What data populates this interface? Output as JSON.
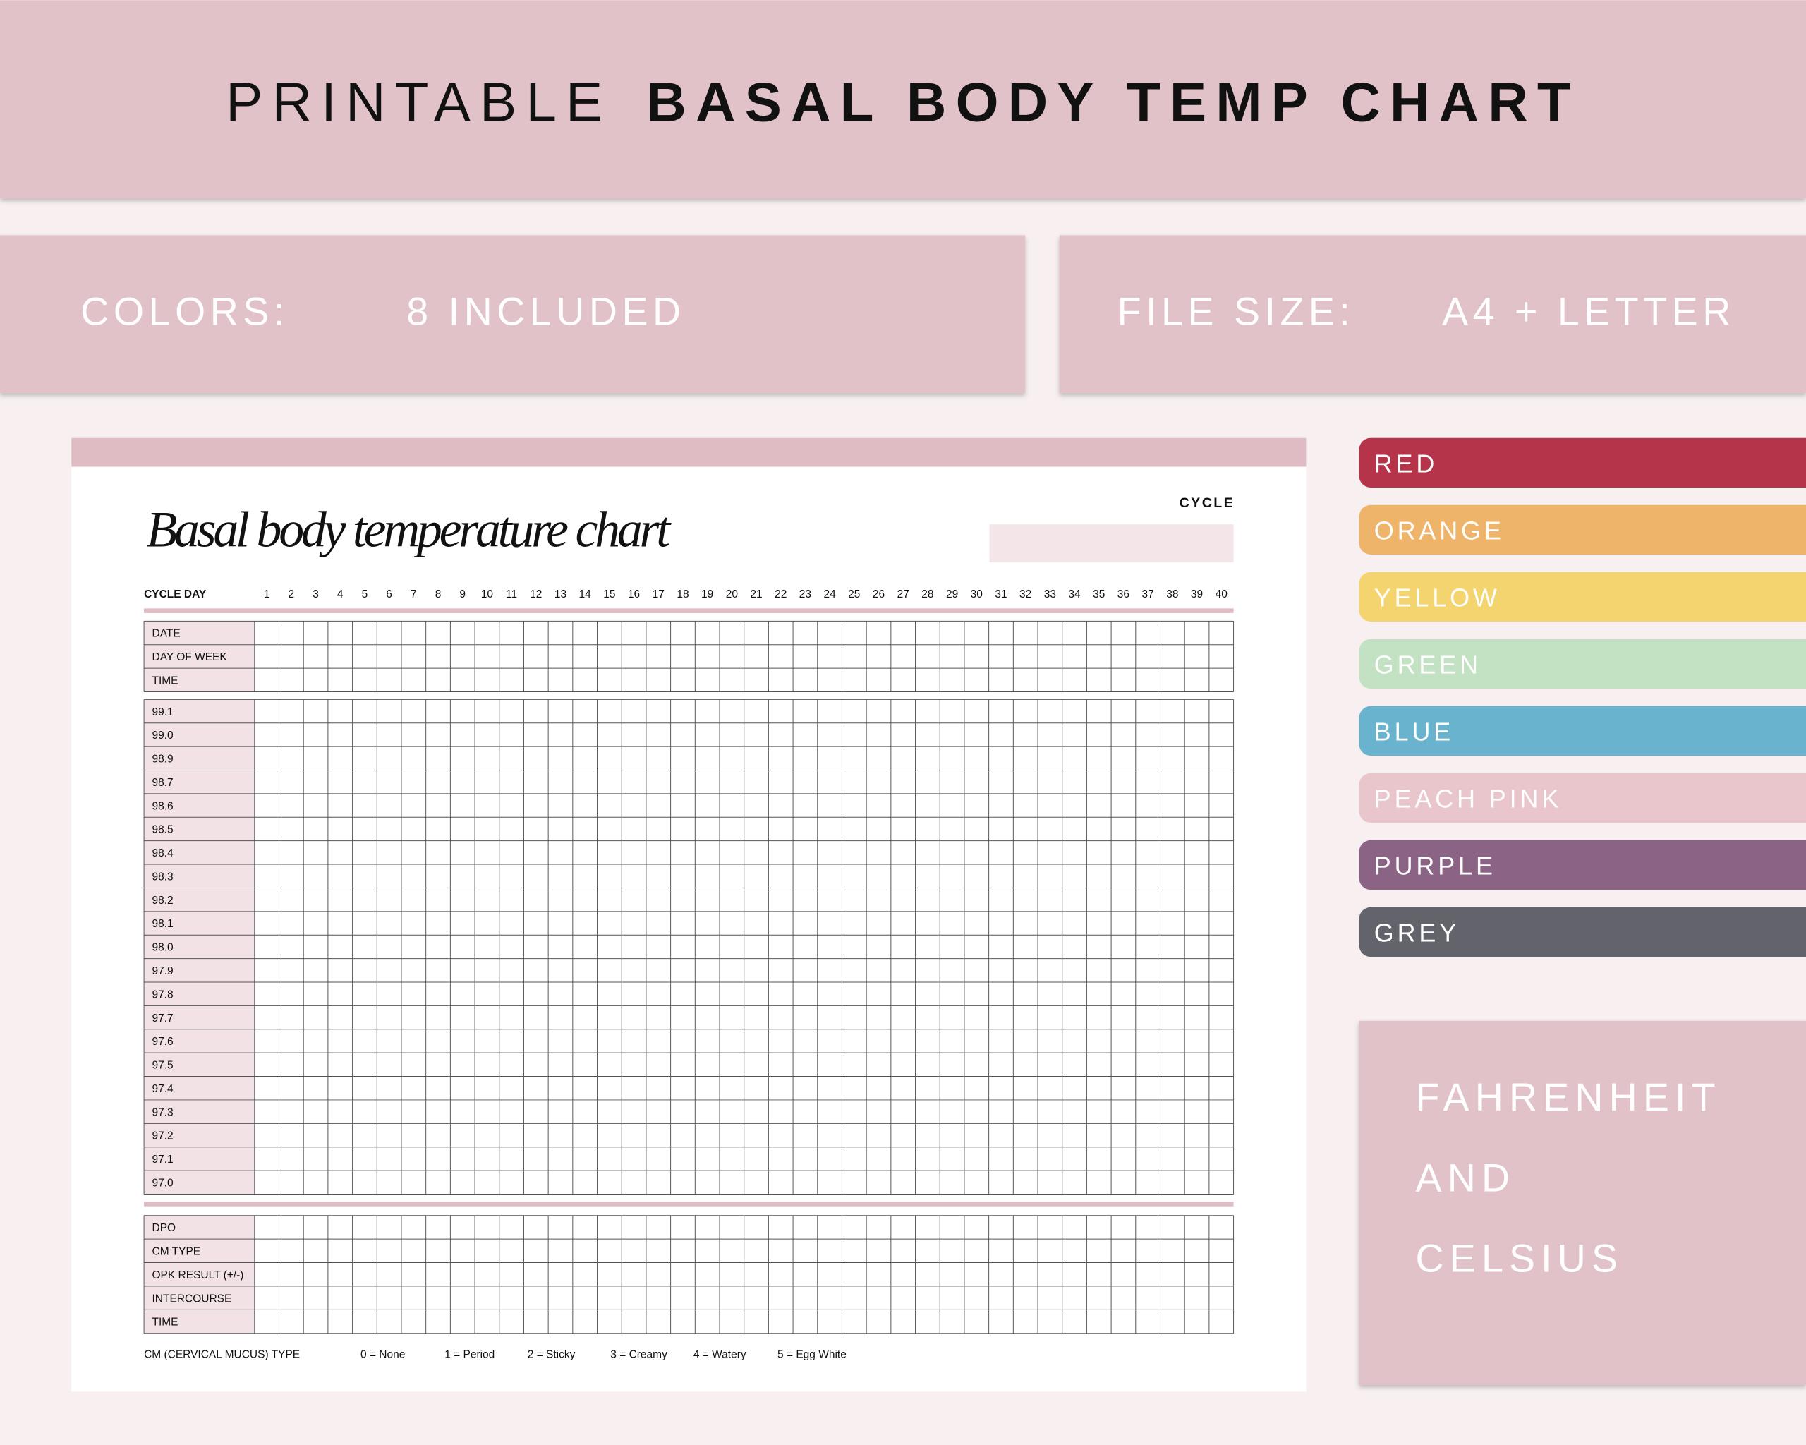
{
  "header": {
    "title_light": "PRINTABLE",
    "title_bold": "BASAL BODY TEMP CHART"
  },
  "info": [
    {
      "label": "COLORS:",
      "value": "8 INCLUDED"
    },
    {
      "label": "FILE SIZE:",
      "value": "A4 + LETTER"
    }
  ],
  "sheet": {
    "title": "Basal body temperature chart",
    "cycle_label": "CYCLE",
    "cycle_day_label": "CYCLE DAY",
    "cycle_days": [
      1,
      2,
      3,
      4,
      5,
      6,
      7,
      8,
      9,
      10,
      11,
      12,
      13,
      14,
      15,
      16,
      17,
      18,
      19,
      20,
      21,
      22,
      23,
      24,
      25,
      26,
      27,
      28,
      29,
      30,
      31,
      32,
      33,
      34,
      35,
      36,
      37,
      38,
      39,
      40
    ],
    "sections": [
      [
        "DATE",
        "DAY OF WEEK",
        "TIME"
      ],
      [
        "99.1",
        "99.0",
        "98.9",
        "98.7",
        "98.6",
        "98.5",
        "98.4",
        "98.3",
        "98.2",
        "98.1",
        "98.0",
        "97.9",
        "97.8",
        "97.7",
        "97.6",
        "97.5",
        "97.4",
        "97.3",
        "97.2",
        "97.1",
        "97.0"
      ],
      [
        "DPO",
        "CM TYPE",
        "OPK RESULT (+/-)",
        "INTERCOURSE",
        "TIME"
      ]
    ],
    "footer": {
      "label": "CM (CERVICAL MUCUS) TYPE",
      "items": [
        "0 = None",
        "1 = Period",
        "2 = Sticky",
        "3 = Creamy",
        "4 = Watery",
        "5 = Egg White"
      ]
    }
  },
  "colors": [
    {
      "name": "RED",
      "color": "#b5344a"
    },
    {
      "name": "ORANGE",
      "color": "#eeb46a"
    },
    {
      "name": "YELLOW",
      "color": "#f4d46e"
    },
    {
      "name": "GREEN",
      "color": "#c3e2c3"
    },
    {
      "name": "BLUE",
      "color": "#6ab3ce"
    },
    {
      "name": "PEACH PINK",
      "color": "#e9c5cc"
    },
    {
      "name": "PURPLE",
      "color": "#8a6385"
    },
    {
      "name": "GREY",
      "color": "#63636b"
    }
  ],
  "units": [
    "FAHRENHEIT",
    "AND",
    "CELSIUS"
  ]
}
